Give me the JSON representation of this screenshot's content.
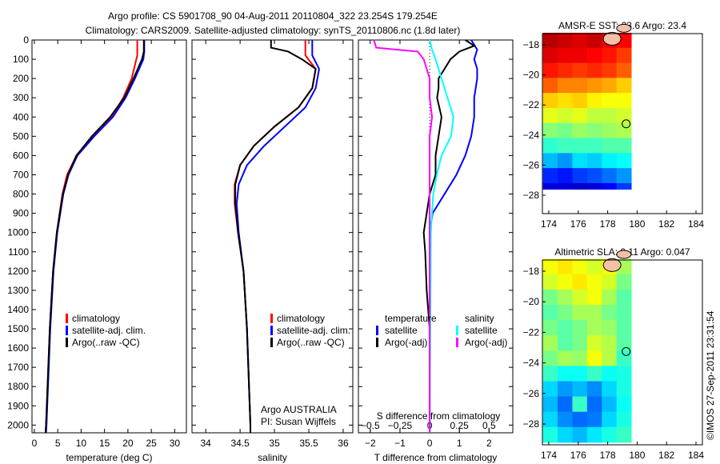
{
  "title_line1": "Argo profile: CS 5901708_90 04-Aug-2011 20110804_322 23.254S 179.254E",
  "title_line2": "Climatology: CARS2009. Satellite-adjusted climatology: synTS_20110806.nc (1.8d later)",
  "credit": "©IMOS 27-Sep-2011 23:31:54",
  "colors": {
    "climatology": "#ff0000",
    "satellite": "#0000ff",
    "argo": "#000000",
    "sal_satellite": "#00ffff",
    "sal_argo": "#ff00ff"
  },
  "chart_data": [
    {
      "type": "line",
      "name": "temperature",
      "xlabel": "temperature (deg C)",
      "ylabel": "",
      "xlim": [
        -0.5,
        32.5
      ],
      "ylim": [
        2040,
        0
      ],
      "xticks": [
        0,
        5,
        10,
        15,
        20,
        25,
        30
      ],
      "yticks": [
        0,
        100,
        200,
        300,
        400,
        500,
        600,
        700,
        800,
        900,
        1000,
        1100,
        1200,
        1300,
        1400,
        1500,
        1600,
        1700,
        1800,
        1900,
        2000
      ],
      "legend": [
        "climatology",
        "satellite-adj. clim.",
        "Argo(..raw -QC)"
      ],
      "series": [
        {
          "name": "climatology",
          "color": "#ff0000",
          "depth": [
            0,
            80,
            100,
            200,
            300,
            400,
            500,
            600,
            700,
            800,
            1000,
            1200,
            1500,
            2000,
            2040
          ],
          "values": [
            22,
            22,
            21.8,
            20.8,
            19,
            16.5,
            12.5,
            9,
            7,
            6,
            4.8,
            4,
            3.3,
            2.5,
            2.4
          ]
        },
        {
          "name": "satellite-adj. clim.",
          "color": "#0000ff",
          "depth": [
            0,
            60,
            100,
            200,
            300,
            400,
            500,
            600,
            700,
            800,
            1000,
            1200,
            1500,
            2000,
            2040
          ],
          "values": [
            23.5,
            23.5,
            23.3,
            21.5,
            19.5,
            16.8,
            12.8,
            9.2,
            7.3,
            6.2,
            4.9,
            4.1,
            3.4,
            2.6,
            2.5
          ]
        },
        {
          "name": "Argo",
          "color": "#000000",
          "depth": [
            0,
            60,
            100,
            200,
            300,
            400,
            500,
            600,
            700,
            800,
            1000,
            1200,
            1500,
            2000,
            2040
          ],
          "values": [
            23.4,
            23.4,
            23,
            21.2,
            19.2,
            16.2,
            12.3,
            9,
            7.2,
            6.1,
            4.8,
            4,
            3.3,
            2.5,
            2.4
          ]
        }
      ]
    },
    {
      "type": "line",
      "name": "salinity",
      "xlabel": "salinity",
      "xlim": [
        33.8,
        36.14
      ],
      "ylim": [
        2040,
        0
      ],
      "xticks": [
        34,
        34.5,
        35,
        35.5,
        36
      ],
      "legend": [
        "climatology",
        "satellite-adj. clim.",
        "Argo(..raw -QC)"
      ],
      "annotation": [
        "Argo AUSTRALIA",
        "PI: Susan Wijffels"
      ],
      "series": [
        {
          "name": "climatology",
          "color": "#ff0000",
          "depth": [
            0,
            80,
            150,
            250,
            350,
            450,
            550,
            650,
            750,
            850,
            1000,
            1200,
            1500,
            2000,
            2040
          ],
          "values": [
            35.45,
            35.45,
            35.6,
            35.55,
            35.35,
            35.0,
            34.7,
            34.5,
            34.42,
            34.42,
            34.47,
            34.55,
            34.6,
            34.65,
            34.65
          ]
        },
        {
          "name": "satellite-adj. clim.",
          "color": "#0000ff",
          "depth": [
            0,
            80,
            150,
            250,
            350,
            450,
            550,
            650,
            750,
            850,
            1000,
            1200,
            1500,
            2000,
            2040
          ],
          "values": [
            35.55,
            35.55,
            35.65,
            35.6,
            35.45,
            35.15,
            34.85,
            34.6,
            34.48,
            34.45,
            34.48,
            34.55,
            34.6,
            34.65,
            34.65
          ]
        },
        {
          "name": "Argo",
          "color": "#000000",
          "depth": [
            0,
            40,
            60,
            100,
            150,
            250,
            350,
            450,
            550,
            650,
            750,
            850,
            1000,
            1200,
            1500,
            2000,
            2040
          ],
          "values": [
            34.95,
            34.95,
            35.2,
            35.4,
            35.6,
            35.55,
            35.35,
            35.0,
            34.7,
            34.5,
            34.43,
            34.43,
            34.47,
            34.55,
            34.6,
            34.65,
            34.65
          ]
        }
      ]
    },
    {
      "type": "line",
      "name": "difference",
      "xlabel": "T difference from climatology",
      "x2label": "S difference from climatology",
      "xlim": [
        -2.4,
        2.8
      ],
      "ylim": [
        2040,
        0
      ],
      "xticks": [
        -2,
        -1,
        0,
        1,
        2
      ],
      "x2ticks": [
        -0.5,
        -0.25,
        0,
        0.25,
        0.5
      ],
      "legend_temperature": {
        "title": "temperature",
        "items": [
          "satellite",
          "Argo(-adj)"
        ]
      },
      "legend_salinity": {
        "title": "salinity",
        "items": [
          "satellite",
          "Argo(-adj)"
        ]
      },
      "series": [
        {
          "name": "T satellite",
          "color": "#0000ff",
          "unit": "T",
          "depth": [
            0,
            50,
            100,
            150,
            200,
            300,
            400,
            500,
            600,
            700,
            800,
            900,
            1000,
            2040
          ],
          "values": [
            1.4,
            1.6,
            1.5,
            1.6,
            1.6,
            1.5,
            1.5,
            1.4,
            1.2,
            0.9,
            0.5,
            0.1,
            0,
            0
          ]
        },
        {
          "name": "T Argo(-adj)",
          "color": "#000000",
          "unit": "T",
          "depth": [
            0,
            30,
            60,
            100,
            150,
            200,
            250,
            300,
            400,
            500,
            600,
            700,
            800,
            900,
            1000,
            1100,
            1300,
            1500,
            2040
          ],
          "values": [
            1.2,
            1.5,
            1.0,
            0.7,
            0.5,
            0.3,
            0.3,
            0.25,
            0.4,
            0.3,
            0.2,
            0.2,
            0.0,
            -0.1,
            -0.2,
            -0.15,
            -0.1,
            0,
            0
          ]
        },
        {
          "name": "S satellite",
          "color": "#00ffff",
          "unit": "S",
          "depth": [
            0,
            50,
            100,
            200,
            300,
            400,
            500,
            600,
            700,
            800,
            1000,
            2040
          ],
          "values": [
            0,
            0.02,
            0.05,
            0.1,
            0.15,
            0.2,
            0.18,
            0.1,
            0.06,
            0.03,
            0.01,
            0
          ]
        },
        {
          "name": "S Argo(-adj)",
          "color": "#ff00ff",
          "unit": "S",
          "depth": [
            0,
            40,
            60,
            100,
            200,
            300,
            400,
            500,
            700,
            2040
          ],
          "values": [
            -0.47,
            -0.45,
            -0.1,
            -0.05,
            0,
            0,
            0.02,
            0,
            0,
            0
          ]
        }
      ]
    },
    {
      "type": "heatmap",
      "name": "sst",
      "title": "AMSR-E SST: 23.6 Argo: 23.4",
      "xticks": [
        174,
        176,
        178,
        180,
        182,
        184
      ],
      "yticks": [
        -18,
        -20,
        -22,
        -24,
        -26,
        -28
      ],
      "lon": [
        173.6,
        174.6,
        175.6,
        176.6,
        177.6,
        178.6,
        179.6
      ],
      "lat": [
        -17.2,
        -18.2,
        -19.2,
        -20.2,
        -21.2,
        -22.2,
        -23.2,
        -24.2,
        -25.2,
        -26.2,
        -27.2,
        -27.6
      ],
      "clim": [
        20.5,
        26
      ],
      "values": [
        [
          25.7,
          25.6,
          25.5,
          25.6,
          25.4,
          25.3
        ],
        [
          25.5,
          25.4,
          25.4,
          25.3,
          25.2,
          25.0
        ],
        [
          25.2,
          25.1,
          25.0,
          25.1,
          25.0,
          24.8
        ],
        [
          24.8,
          24.6,
          24.6,
          24.5,
          24.4,
          24.2
        ],
        [
          24.2,
          24.1,
          24.2,
          24.0,
          23.9,
          23.9
        ],
        [
          23.8,
          23.7,
          23.8,
          23.6,
          23.6,
          23.7
        ],
        [
          23.3,
          23.2,
          23.4,
          23.3,
          23.4,
          23.5
        ],
        [
          22.8,
          22.9,
          22.9,
          22.9,
          23.0,
          23.0
        ],
        [
          22.2,
          22.0,
          22.4,
          22.3,
          22.5,
          22.6
        ],
        [
          21.4,
          21.3,
          21.5,
          21.6,
          21.8,
          22.0
        ],
        [
          21.0,
          21.0,
          20.9,
          21.0,
          21.2,
          21.5
        ]
      ],
      "argo": {
        "lon": 179.254,
        "lat": -23.254
      }
    },
    {
      "type": "heatmap",
      "name": "sla",
      "title": "Altimetric SLA: 0.11 Argo: 0.047",
      "xticks": [
        174,
        176,
        178,
        180,
        182,
        184
      ],
      "yticks": [
        -18,
        -20,
        -22,
        -24,
        -26,
        -28
      ],
      "lon": [
        173.6,
        174.6,
        175.6,
        176.6,
        177.6,
        178.6,
        179.6
      ],
      "lat": [
        -17.2,
        -18.2,
        -19.2,
        -20.2,
        -21.2,
        -22.2,
        -23.2,
        -24.2,
        -25.2,
        -26.2,
        -27.2,
        -28.2,
        -29.2
      ],
      "clim": [
        -0.2,
        0.45
      ],
      "values": [
        [
          0.2,
          0.22,
          0.2,
          0.18,
          0.2,
          0.15
        ],
        [
          0.18,
          0.2,
          0.22,
          0.2,
          0.18,
          0.12
        ],
        [
          0.12,
          0.15,
          0.18,
          0.2,
          0.15,
          0.1
        ],
        [
          0.1,
          0.12,
          0.15,
          0.15,
          0.12,
          0.1
        ],
        [
          0.12,
          0.1,
          0.12,
          0.15,
          0.14,
          0.1
        ],
        [
          0.15,
          0.1,
          0.12,
          0.18,
          0.16,
          0.1
        ],
        [
          0.12,
          0.15,
          0.14,
          0.2,
          0.16,
          0.08
        ],
        [
          0.08,
          0.05,
          0.05,
          0.08,
          0.05,
          0.06
        ],
        [
          0.02,
          -0.02,
          0.0,
          -0.03,
          0.02,
          0.06
        ],
        [
          0.0,
          -0.05,
          0.08,
          -0.05,
          0.0,
          0.05
        ],
        [
          0.02,
          -0.03,
          -0.05,
          -0.04,
          0.02,
          0.06
        ],
        [
          0.06,
          0.02,
          0.0,
          0.03,
          0.06,
          0.08
        ]
      ],
      "argo": {
        "lon": 179.254,
        "lat": -23.254
      }
    }
  ]
}
